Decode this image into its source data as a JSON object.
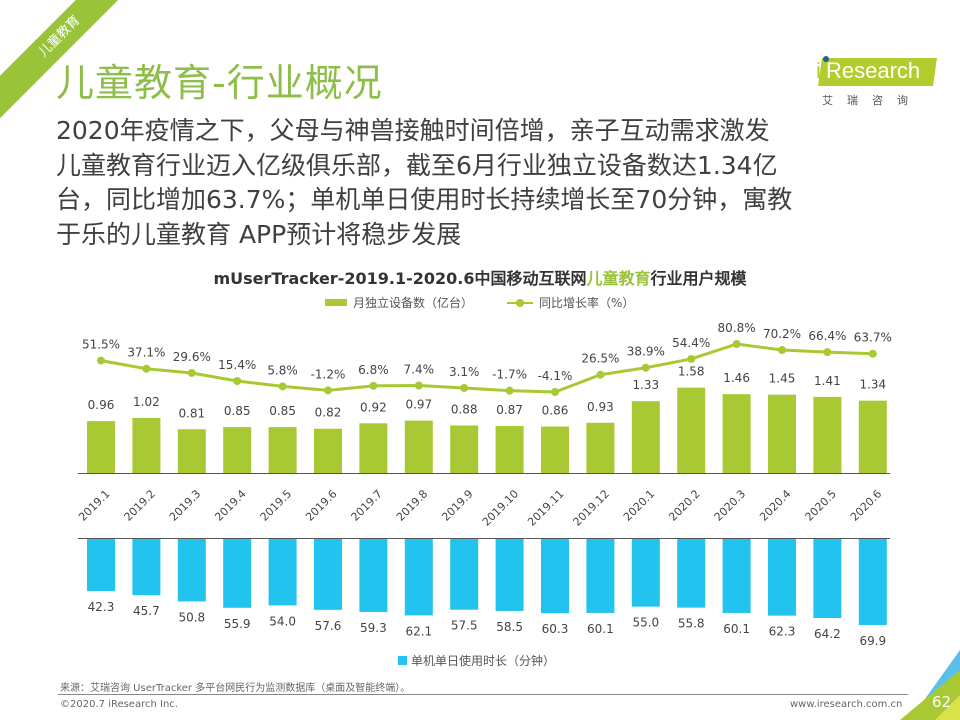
{
  "section_tag": "儿童教育",
  "page_title": "儿童教育-行业概况",
  "logo": {
    "brand": "Research",
    "brand_i": "i",
    "cn": "艾瑞咨询"
  },
  "summary_lines": [
    "2020年疫情之下，父母与神兽接触时间倍增，亲子互动需求激发",
    "儿童教育行业迈入亿级俱乐部，截至6月行业独立设备数达1.34亿",
    "台，同比增加63.7%；单机单日使用时长持续增长至70分钟，寓教",
    "于乐的儿童教育 APP预计将稳步发展"
  ],
  "chart_title_pre": "mUserTracker-2019.1-2020.6中国移动互联网",
  "chart_title_hl": "儿童教育",
  "chart_title_post": "行业用户规模",
  "colors": {
    "green": "#a8c933",
    "line": "#a8c933",
    "cyan": "#22c3ee",
    "accent": "#9ac33c"
  },
  "chart_data": {
    "type": "bar",
    "title": "mUserTracker-2019.1-2020.6中国移动互联网儿童教育行业用户规模",
    "categories": [
      "2019.1",
      "2019.2",
      "2019.3",
      "2019.4",
      "2019.5",
      "2019.6",
      "2019.7",
      "2019.8",
      "2019.9",
      "2019.10",
      "2019.11",
      "2019.12",
      "2020.1",
      "2020.2",
      "2020.3",
      "2020.4",
      "2020.5",
      "2020.6"
    ],
    "series": [
      {
        "name": "月独立设备数（亿台）",
        "type": "bar",
        "values": [
          0.96,
          1.02,
          0.81,
          0.85,
          0.85,
          0.82,
          0.92,
          0.97,
          0.88,
          0.87,
          0.86,
          0.93,
          1.33,
          1.58,
          1.46,
          1.45,
          1.41,
          1.34
        ]
      },
      {
        "name": "同比增长率（%）",
        "type": "line",
        "values": [
          51.5,
          37.1,
          29.6,
          15.4,
          5.8,
          -1.2,
          6.8,
          7.4,
          3.1,
          -1.7,
          -4.1,
          26.5,
          38.9,
          54.4,
          80.8,
          70.2,
          66.4,
          63.7
        ],
        "labels": [
          "51.5%",
          "37.1%",
          "29.6%",
          "15.4%",
          "5.8%",
          "-1.2%",
          "6.8%",
          "7.4%",
          "3.1%",
          "-1.7%",
          "-4.1%",
          "26.5%",
          "38.9%",
          "54.4%",
          "80.8%",
          "70.2%",
          "66.4%",
          "63.7%"
        ]
      },
      {
        "name": "单机单日使用时长（分钟）",
        "type": "bar-inverted",
        "values": [
          42.3,
          45.7,
          50.8,
          55.9,
          54.0,
          57.6,
          59.3,
          62.1,
          57.5,
          58.5,
          60.3,
          60.1,
          55.0,
          55.8,
          60.1,
          62.3,
          64.2,
          69.9
        ],
        "labels": [
          "42.3",
          "45.7",
          "50.8",
          "55.9",
          "54.0",
          "57.6",
          "59.3",
          "62.1",
          "57.5",
          "58.5",
          "60.3",
          "60.1",
          "55.0",
          "55.8",
          "60.1",
          "62.3",
          "64.2",
          "69.9"
        ]
      }
    ],
    "legend": [
      "月独立设备数（亿台）",
      "同比增长率（%）",
      "单机单日使用时长（分钟）"
    ],
    "legend_position": "top-center",
    "grid": false
  },
  "source": "来源：艾瑞咨询 UserTracker 多平台网民行为监测数据库（桌面及智能终端）。",
  "copyright": "©2020.7 iResearch Inc.",
  "website": "www.iresearch.com.cn",
  "page_number": "62"
}
